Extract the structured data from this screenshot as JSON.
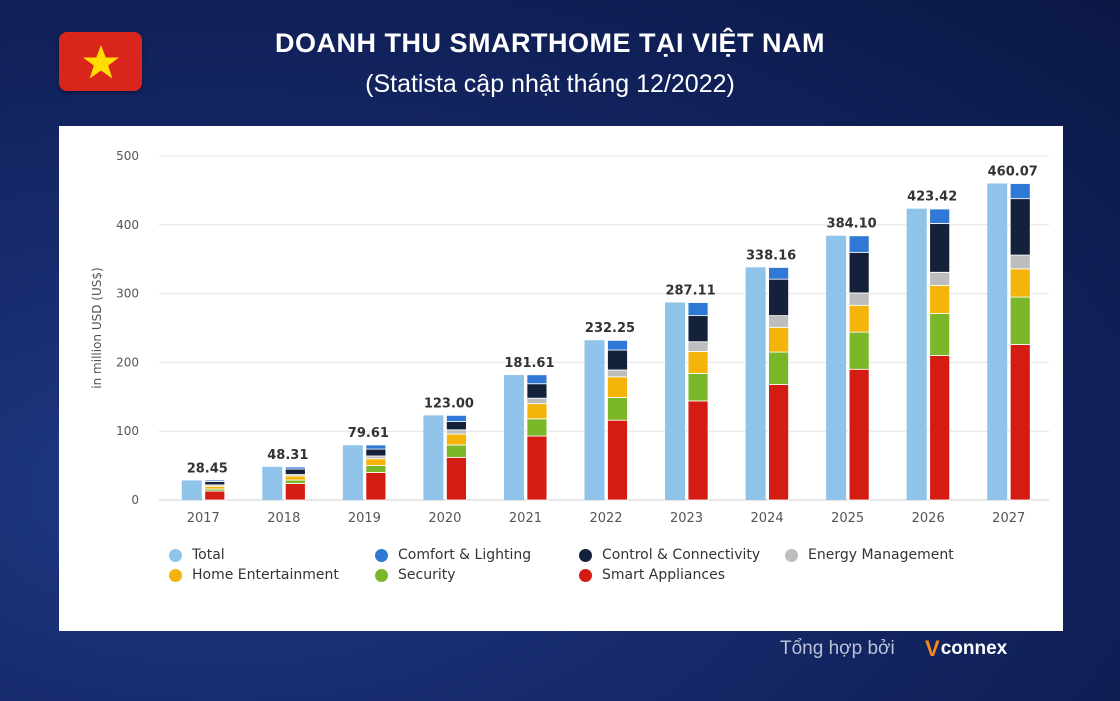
{
  "header": {
    "title": "DOANH THU SMARTHOME TẠI VIỆT NAM",
    "subtitle": "(Statista cập nhật tháng 12/2022)"
  },
  "footer": {
    "credit": "Tổng hợp bởi",
    "logo_mark": "V",
    "logo_text": "connex"
  },
  "colors": {
    "total": "#8fc3ea",
    "comfort": "#2f78d6",
    "control": "#13223a",
    "energy": "#bdbdbd",
    "home": "#f5b40a",
    "security": "#7ab82a",
    "appliances": "#d41c12"
  },
  "chart_data": {
    "type": "bar",
    "ylabel": "in million USD (US$)",
    "ylim": [
      0,
      500
    ],
    "yticks": [
      0,
      100,
      200,
      300,
      400,
      500
    ],
    "grid": true,
    "legend_position": "bottom",
    "categories": [
      "2017",
      "2018",
      "2019",
      "2020",
      "2021",
      "2022",
      "2023",
      "2024",
      "2025",
      "2026",
      "2027"
    ],
    "total_labels": [
      "28.45",
      "48.31",
      "79.61",
      "123.00",
      "181.61",
      "232.25",
      "287.11",
      "338.16",
      "384.10",
      "423.42",
      "460.07"
    ],
    "series": [
      {
        "name": "Total",
        "key": "total",
        "values": [
          28.45,
          48.31,
          79.61,
          123.0,
          181.61,
          232.25,
          287.11,
          338.16,
          384.1,
          423.42,
          460.07
        ]
      },
      {
        "name": "Smart Appliances",
        "key": "appliances",
        "stack": "segments",
        "values": [
          13,
          24,
          40,
          62,
          93,
          116,
          144,
          168,
          190,
          210,
          226
        ]
      },
      {
        "name": "Security",
        "key": "security",
        "stack": "segments",
        "values": [
          3,
          5,
          10,
          18,
          25,
          33,
          40,
          47,
          54,
          61,
          69
        ]
      },
      {
        "name": "Home Entertainment",
        "key": "home",
        "stack": "segments",
        "values": [
          4,
          6,
          10,
          16,
          22,
          30,
          32,
          36,
          39,
          41,
          41
        ]
      },
      {
        "name": "Energy Management",
        "key": "energy",
        "stack": "segments",
        "values": [
          2,
          2,
          4,
          6,
          8,
          10,
          14,
          17,
          18,
          19,
          20
        ]
      },
      {
        "name": "Control & Connectivity",
        "key": "control",
        "stack": "segments",
        "values": [
          5,
          8,
          10,
          12,
          21,
          29,
          38,
          53,
          59,
          71,
          82
        ]
      },
      {
        "name": "Comfort & Lighting",
        "key": "comfort",
        "stack": "segments",
        "values": [
          2,
          3,
          6,
          9,
          13,
          14,
          19,
          17,
          24,
          21,
          22
        ]
      }
    ],
    "legend": [
      {
        "name": "Total",
        "key": "total"
      },
      {
        "name": "Comfort & Lighting",
        "key": "comfort"
      },
      {
        "name": "Control & Connectivity",
        "key": "control"
      },
      {
        "name": "Energy Management",
        "key": "energy"
      },
      {
        "name": "Home Entertainment",
        "key": "home"
      },
      {
        "name": "Security",
        "key": "security"
      },
      {
        "name": "Smart Appliances",
        "key": "appliances"
      }
    ]
  }
}
